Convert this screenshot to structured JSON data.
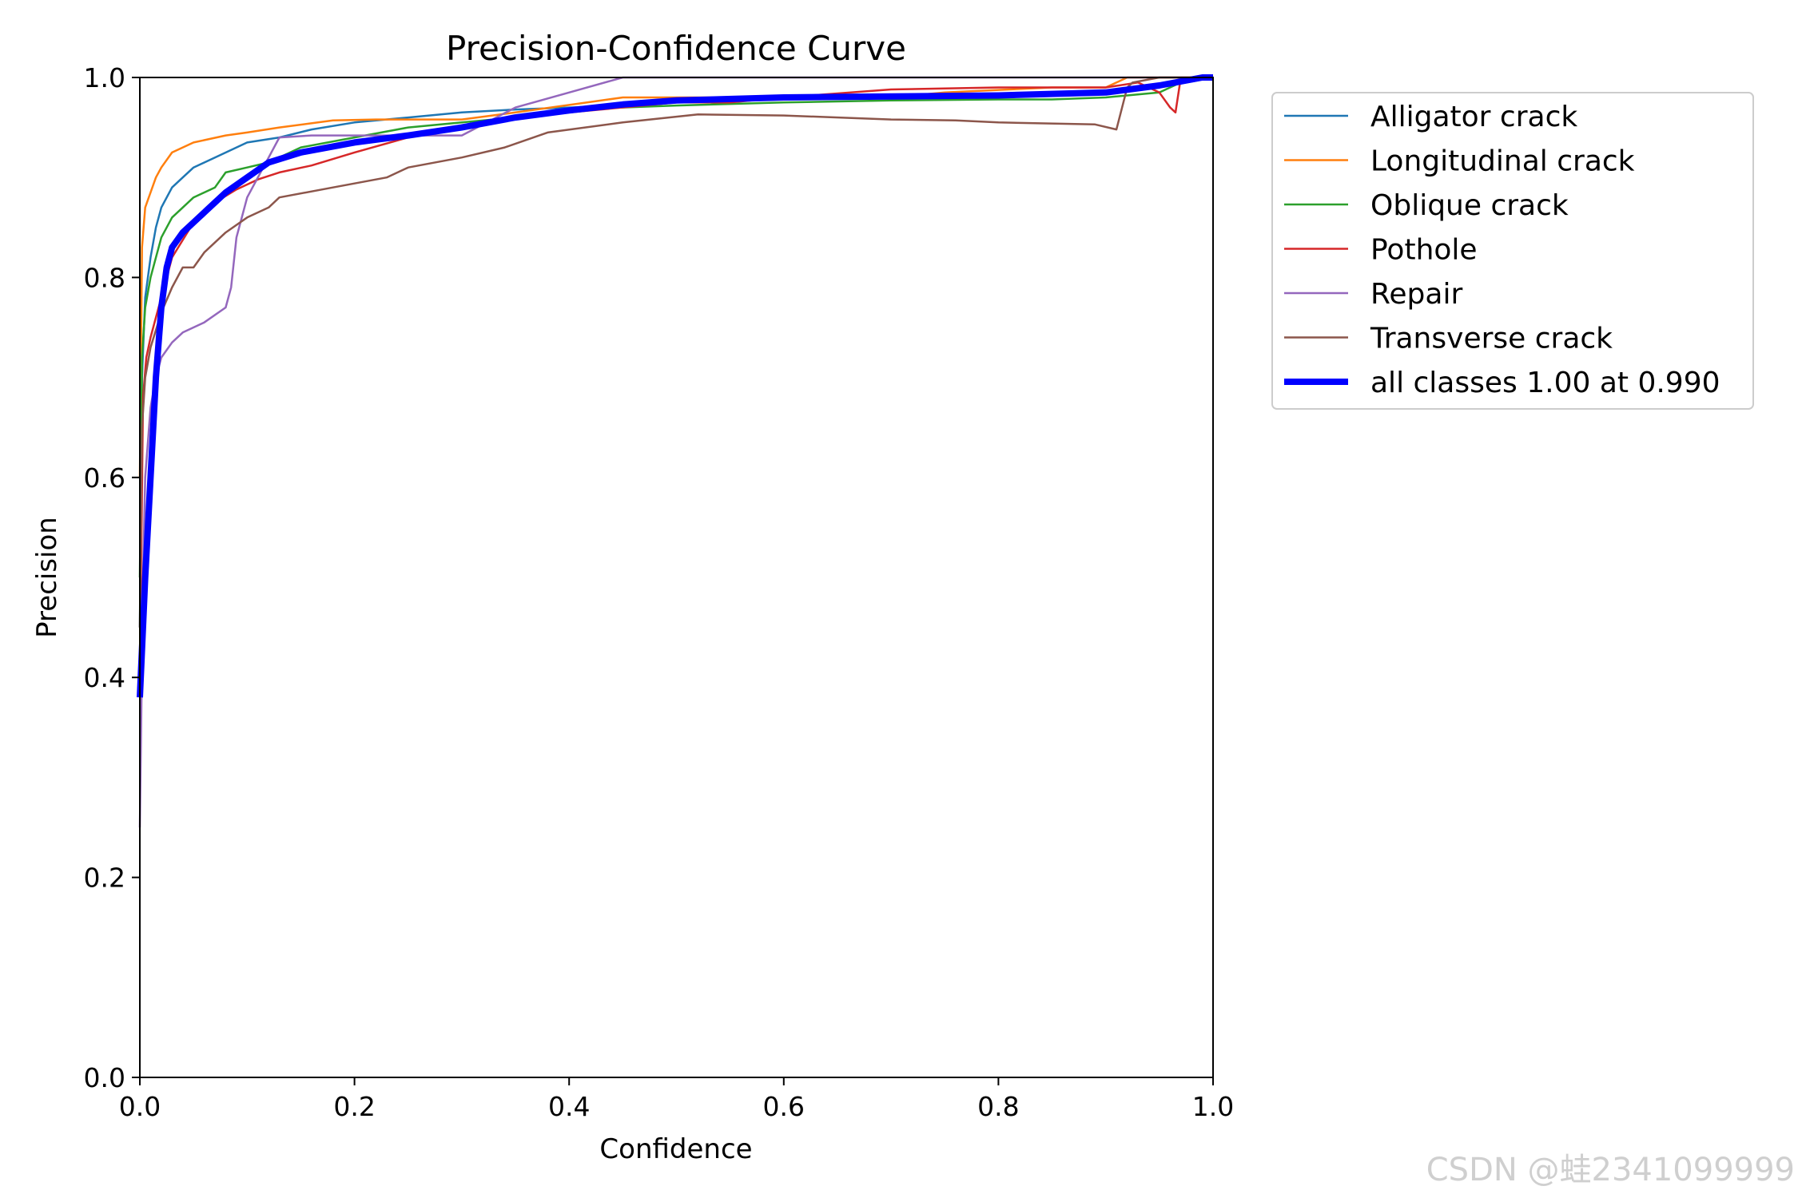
{
  "chart_data": {
    "type": "line",
    "title": "Precision-Confidence Curve",
    "xlabel": "Confidence",
    "ylabel": "Precision",
    "xlim": [
      0,
      1
    ],
    "ylim": [
      0,
      1
    ],
    "xticks": [
      "0.0",
      "0.2",
      "0.4",
      "0.6",
      "0.8",
      "1.0"
    ],
    "yticks": [
      "0.0",
      "0.2",
      "0.4",
      "0.6",
      "0.8",
      "1.0"
    ],
    "legend_position": "outside-top-right",
    "grid": false,
    "watermark": "CSDN @蛙2341099999",
    "series": [
      {
        "name": "Alligator crack",
        "color": "#1f77b4",
        "x": [
          0.0,
          0.002,
          0.005,
          0.01,
          0.015,
          0.02,
          0.03,
          0.04,
          0.05,
          0.07,
          0.1,
          0.13,
          0.16,
          0.2,
          0.25,
          0.3,
          0.35,
          0.4,
          0.5,
          0.6,
          0.7,
          0.8,
          0.9,
          0.95,
          1.0
        ],
        "y": [
          0.45,
          0.7,
          0.78,
          0.82,
          0.85,
          0.87,
          0.89,
          0.9,
          0.91,
          0.92,
          0.935,
          0.94,
          0.948,
          0.955,
          0.96,
          0.965,
          0.968,
          0.97,
          0.975,
          0.978,
          0.98,
          0.983,
          0.985,
          0.99,
          1.0
        ]
      },
      {
        "name": "Longitudinal crack",
        "color": "#ff7f0e",
        "x": [
          0.0,
          0.002,
          0.005,
          0.01,
          0.015,
          0.02,
          0.03,
          0.05,
          0.08,
          0.1,
          0.13,
          0.18,
          0.22,
          0.3,
          0.35,
          0.45,
          0.55,
          0.7,
          0.75,
          0.85,
          0.9,
          0.92,
          0.96,
          1.0
        ],
        "y": [
          0.6,
          0.83,
          0.87,
          0.885,
          0.9,
          0.91,
          0.925,
          0.935,
          0.942,
          0.945,
          0.95,
          0.957,
          0.958,
          0.958,
          0.965,
          0.98,
          0.98,
          0.98,
          0.985,
          0.99,
          0.99,
          1.0,
          1.0,
          1.0
        ]
      },
      {
        "name": "Oblique crack",
        "color": "#2ca02c",
        "x": [
          0.0,
          0.002,
          0.005,
          0.01,
          0.015,
          0.02,
          0.03,
          0.04,
          0.05,
          0.07,
          0.08,
          0.1,
          0.12,
          0.15,
          0.2,
          0.25,
          0.3,
          0.35,
          0.4,
          0.5,
          0.6,
          0.7,
          0.8,
          0.85,
          0.9,
          0.95,
          0.97,
          1.0
        ],
        "y": [
          0.5,
          0.72,
          0.77,
          0.8,
          0.82,
          0.84,
          0.86,
          0.87,
          0.88,
          0.89,
          0.905,
          0.91,
          0.915,
          0.93,
          0.94,
          0.95,
          0.955,
          0.96,
          0.968,
          0.972,
          0.975,
          0.977,
          0.978,
          0.978,
          0.98,
          0.985,
          0.995,
          1.0
        ]
      },
      {
        "name": "Pothole",
        "color": "#d62728",
        "x": [
          0.0,
          0.003,
          0.006,
          0.01,
          0.015,
          0.02,
          0.03,
          0.05,
          0.07,
          0.09,
          0.11,
          0.13,
          0.16,
          0.2,
          0.25,
          0.3,
          0.35,
          0.4,
          0.5,
          0.55,
          0.6,
          0.7,
          0.8,
          0.9,
          0.93,
          0.95,
          0.96,
          0.965,
          0.97,
          1.0
        ],
        "y": [
          0.4,
          0.68,
          0.72,
          0.74,
          0.76,
          0.78,
          0.82,
          0.855,
          0.875,
          0.888,
          0.898,
          0.905,
          0.912,
          0.925,
          0.94,
          0.95,
          0.96,
          0.965,
          0.975,
          0.975,
          0.98,
          0.988,
          0.99,
          0.99,
          0.995,
          0.985,
          0.97,
          0.965,
          1.0,
          1.0
        ]
      },
      {
        "name": "Repair",
        "color": "#9467bd",
        "x": [
          0.0,
          0.003,
          0.005,
          0.01,
          0.015,
          0.02,
          0.03,
          0.04,
          0.06,
          0.08,
          0.085,
          0.09,
          0.1,
          0.11,
          0.12,
          0.13,
          0.16,
          0.2,
          0.25,
          0.3,
          0.35,
          0.4,
          0.45,
          0.5,
          0.7,
          0.9,
          1.0
        ],
        "y": [
          0.25,
          0.5,
          0.6,
          0.67,
          0.7,
          0.72,
          0.735,
          0.745,
          0.755,
          0.77,
          0.79,
          0.84,
          0.88,
          0.9,
          0.92,
          0.94,
          0.942,
          0.942,
          0.942,
          0.942,
          0.97,
          0.985,
          1.0,
          1.0,
          1.0,
          1.0,
          1.0
        ]
      },
      {
        "name": "Transverse crack",
        "color": "#8c564b",
        "x": [
          0.0,
          0.002,
          0.005,
          0.01,
          0.02,
          0.03,
          0.04,
          0.05,
          0.06,
          0.08,
          0.1,
          0.12,
          0.13,
          0.18,
          0.23,
          0.25,
          0.3,
          0.34,
          0.38,
          0.45,
          0.52,
          0.6,
          0.7,
          0.76,
          0.8,
          0.89,
          0.91,
          0.92,
          0.925,
          0.95,
          1.0
        ],
        "y": [
          0.45,
          0.65,
          0.7,
          0.73,
          0.765,
          0.79,
          0.81,
          0.81,
          0.825,
          0.845,
          0.86,
          0.87,
          0.88,
          0.89,
          0.9,
          0.91,
          0.92,
          0.93,
          0.945,
          0.955,
          0.963,
          0.962,
          0.958,
          0.957,
          0.955,
          0.953,
          0.948,
          0.99,
          0.995,
          1.0,
          1.0
        ]
      },
      {
        "name": "all classes 1.00 at 0.990",
        "color": "#0000ff",
        "thick": true,
        "x": [
          0.0,
          0.005,
          0.01,
          0.015,
          0.02,
          0.025,
          0.03,
          0.04,
          0.05,
          0.06,
          0.08,
          0.1,
          0.12,
          0.15,
          0.2,
          0.25,
          0.3,
          0.35,
          0.4,
          0.45,
          0.5,
          0.6,
          0.7,
          0.8,
          0.9,
          0.95,
          0.99,
          1.0
        ],
        "y": [
          0.38,
          0.5,
          0.6,
          0.7,
          0.77,
          0.81,
          0.83,
          0.845,
          0.855,
          0.865,
          0.885,
          0.9,
          0.915,
          0.925,
          0.935,
          0.942,
          0.95,
          0.96,
          0.967,
          0.973,
          0.977,
          0.98,
          0.981,
          0.982,
          0.985,
          0.992,
          1.0,
          1.0
        ]
      }
    ]
  }
}
